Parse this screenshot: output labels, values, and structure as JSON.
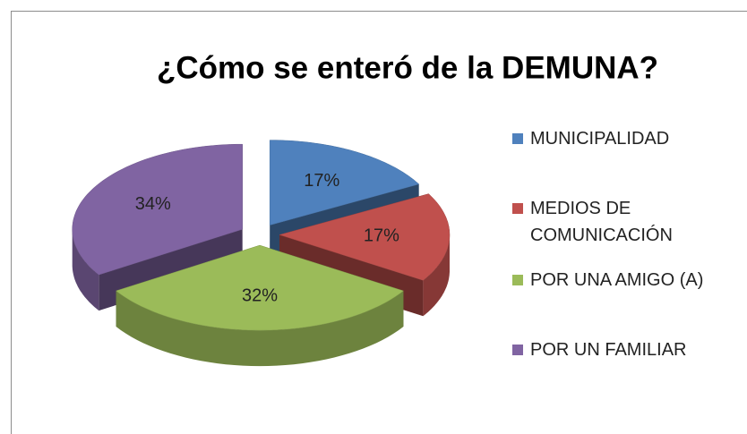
{
  "chart_data": {
    "type": "pie",
    "title": "¿Cómo se enteró de la DEMUNA?",
    "categories": [
      "MUNICIPALIDAD",
      "MEDIOS DE COMUNICACIÓN",
      "POR UNA AMIGO (A)",
      "POR UN FAMILIAR"
    ],
    "values": [
      17,
      17,
      32,
      34
    ],
    "value_labels": [
      "17%",
      "17%",
      "32%",
      "34%"
    ],
    "colors": [
      "#4f81bd",
      "#c0504d",
      "#9bbb59",
      "#8064a2"
    ],
    "legend": "right"
  }
}
